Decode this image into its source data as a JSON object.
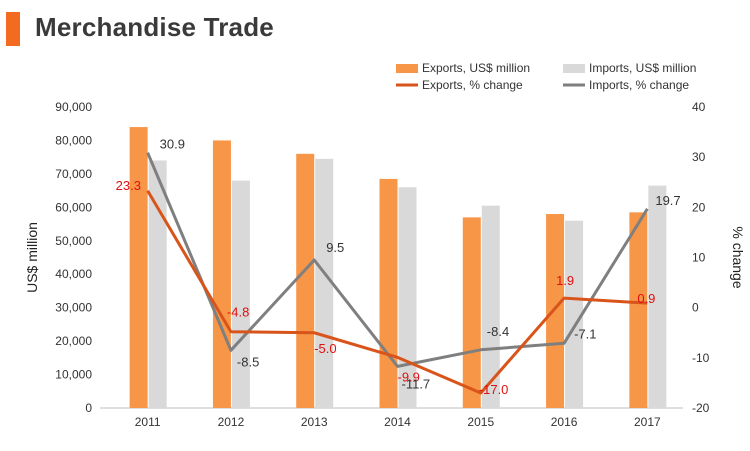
{
  "header": {
    "title": "Merchandise Trade"
  },
  "colors": {
    "accent": "#f26b21",
    "exports_bar": "#f79646",
    "imports_bar": "#d9d9d9",
    "exports_line": "#d9541b",
    "imports_line": "#7f7f7f",
    "exports_label": "#e01010",
    "imports_label": "#333333"
  },
  "chart_data": {
    "type": "bar",
    "categories": [
      "2011",
      "2012",
      "2013",
      "2014",
      "2015",
      "2016",
      "2017"
    ],
    "ylabel": "US$ million",
    "y2label": "% change",
    "ylim": [
      0,
      90000
    ],
    "y2lim": [
      -20,
      40
    ],
    "yticks": [
      "0",
      "10,000",
      "20,000",
      "30,000",
      "40,000",
      "50,000",
      "60,000",
      "70,000",
      "80,000",
      "90,000"
    ],
    "y2ticks": [
      "-20",
      "-10",
      "0",
      "10",
      "20",
      "30",
      "40"
    ],
    "legend_position": "top-right",
    "series": [
      {
        "name": "Exports, US$ million",
        "kind": "bar",
        "axis": "left",
        "values": [
          84000,
          80000,
          76000,
          68500,
          57000,
          58000,
          58500
        ]
      },
      {
        "name": "Imports, US$ million",
        "kind": "bar",
        "axis": "left",
        "values": [
          74000,
          68000,
          74500,
          66000,
          60500,
          56000,
          66500
        ]
      },
      {
        "name": "Exports, % change",
        "kind": "line",
        "axis": "right",
        "values": [
          23.3,
          -4.8,
          -5.0,
          -9.9,
          -17.0,
          1.9,
          0.9
        ],
        "labels": [
          "23.3",
          "-4.8",
          "-5.0",
          "-9.9",
          "-17.0",
          "1.9",
          "0.9"
        ]
      },
      {
        "name": "Imports, % change",
        "kind": "line",
        "axis": "right",
        "values": [
          30.9,
          -8.5,
          9.5,
          -11.7,
          -8.4,
          -7.1,
          19.7
        ],
        "labels": [
          "30.9",
          "-8.5",
          "9.5",
          "-11.7",
          "-8.4",
          "-7.1",
          "19.7"
        ]
      }
    ]
  }
}
